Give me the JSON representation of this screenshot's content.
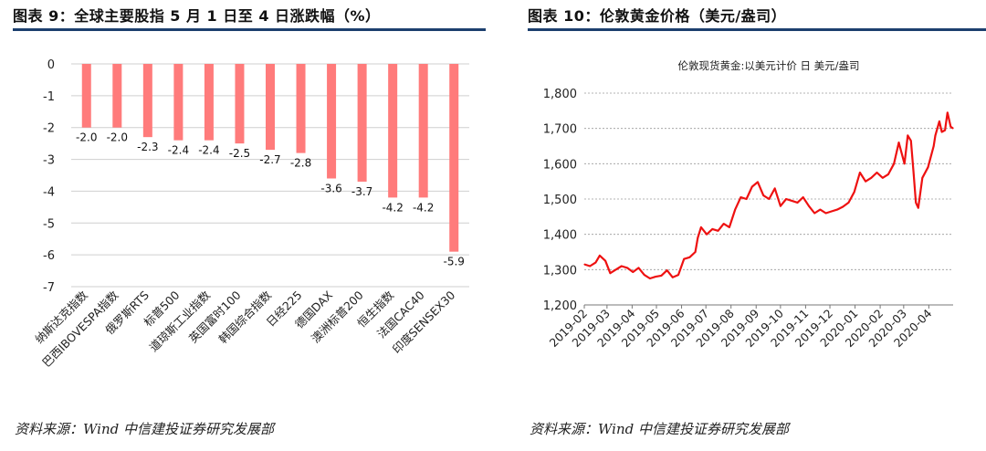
{
  "panels": [
    {
      "title": "图表  9：全球主要股指 5 月 1 日至 4 日涨跌幅（%）",
      "source": "资料来源：Wind    中信建投证券研究发展部"
    },
    {
      "title": "图表  10：伦敦黄金价格（美元/盎司）",
      "source": "资料来源：Wind    中信建投证券研究发展部"
    }
  ],
  "chart_data": [
    {
      "type": "bar",
      "title": "",
      "xlabel": "",
      "ylabel": "",
      "categories": [
        "纳斯达克指数",
        "巴西IBOVESPA指数",
        "俄罗斯RTS",
        "标普500",
        "道琼斯工业指数",
        "英国富时100",
        "韩国综合指数",
        "日经225",
        "德国DAX",
        "澳洲标普200",
        "恒生指数",
        "法国CAC40",
        "印度SENSEX30"
      ],
      "values": [
        -2.0,
        -2.0,
        -2.3,
        -2.4,
        -2.4,
        -2.5,
        -2.7,
        -2.8,
        -3.6,
        -3.7,
        -4.2,
        -4.2,
        -5.9
      ],
      "data_labels": [
        "-2.0",
        "-2.0",
        "-2.3",
        "-2.4",
        "-2.4",
        "-2.5",
        "-2.7",
        "-2.8",
        "-3.6",
        "-3.7",
        "-4.2",
        "-4.2",
        "-5.9"
      ],
      "ylim": [
        -7,
        0
      ],
      "yticks": [
        "0",
        "-1",
        "-2",
        "-3",
        "-4",
        "-5",
        "-6",
        "-7"
      ],
      "grid": true,
      "legend": "none",
      "bar_color": "#ff7b7b"
    },
    {
      "type": "line",
      "title": "伦敦现货黄金:以美元计价 日 美元/盎司",
      "xlabel": "",
      "ylabel": "",
      "xticks": [
        "2019-02",
        "2019-03",
        "2019-04",
        "2019-05",
        "2019-06",
        "2019-07",
        "2019-08",
        "2019-09",
        "2019-10",
        "2019-11",
        "2019-12",
        "2020-01",
        "2020-02",
        "2020-03",
        "2020-04"
      ],
      "yticks": [
        "1,200",
        "1,300",
        "1,400",
        "1,500",
        "1,600",
        "1,700",
        "1,800"
      ],
      "ylim": [
        1200,
        1800
      ],
      "grid": true,
      "legend": "none",
      "line_color": "#ee1111",
      "series": [
        {
          "x": [
            "2019-02-01",
            "2019-02-08",
            "2019-02-15",
            "2019-02-20",
            "2019-02-27",
            "2019-03-05",
            "2019-03-12",
            "2019-03-19",
            "2019-03-26",
            "2019-04-02",
            "2019-04-09",
            "2019-04-16",
            "2019-04-23",
            "2019-04-30",
            "2019-05-07",
            "2019-05-14",
            "2019-05-21",
            "2019-05-28",
            "2019-06-04",
            "2019-06-11",
            "2019-06-18",
            "2019-06-21",
            "2019-06-25",
            "2019-07-02",
            "2019-07-09",
            "2019-07-16",
            "2019-07-23",
            "2019-07-30",
            "2019-08-06",
            "2019-08-13",
            "2019-08-20",
            "2019-08-27",
            "2019-09-03",
            "2019-09-10",
            "2019-09-17",
            "2019-09-24",
            "2019-10-01",
            "2019-10-08",
            "2019-10-15",
            "2019-10-22",
            "2019-10-29",
            "2019-11-05",
            "2019-11-12",
            "2019-11-19",
            "2019-11-26",
            "2019-12-03",
            "2019-12-10",
            "2019-12-17",
            "2019-12-24",
            "2019-12-31",
            "2020-01-07",
            "2020-01-14",
            "2020-01-21",
            "2020-01-28",
            "2020-02-04",
            "2020-02-11",
            "2020-02-18",
            "2020-02-24",
            "2020-03-02",
            "2020-03-06",
            "2020-03-10",
            "2020-03-13",
            "2020-03-16",
            "2020-03-19",
            "2020-03-24",
            "2020-03-31",
            "2020-04-07",
            "2020-04-09",
            "2020-04-14",
            "2020-04-17",
            "2020-04-21",
            "2020-04-24",
            "2020-04-28",
            "2020-05-01"
          ],
          "values": [
            1315,
            1310,
            1320,
            1340,
            1325,
            1290,
            1300,
            1310,
            1305,
            1293,
            1305,
            1285,
            1275,
            1280,
            1283,
            1298,
            1278,
            1285,
            1330,
            1335,
            1350,
            1390,
            1420,
            1400,
            1415,
            1410,
            1430,
            1420,
            1470,
            1505,
            1500,
            1535,
            1548,
            1510,
            1500,
            1530,
            1480,
            1500,
            1495,
            1490,
            1505,
            1480,
            1460,
            1470,
            1460,
            1465,
            1470,
            1478,
            1490,
            1520,
            1575,
            1550,
            1560,
            1575,
            1560,
            1570,
            1600,
            1660,
            1600,
            1680,
            1665,
            1580,
            1490,
            1475,
            1560,
            1590,
            1650,
            1680,
            1720,
            1690,
            1695,
            1745,
            1705,
            1700
          ]
        }
      ]
    }
  ]
}
